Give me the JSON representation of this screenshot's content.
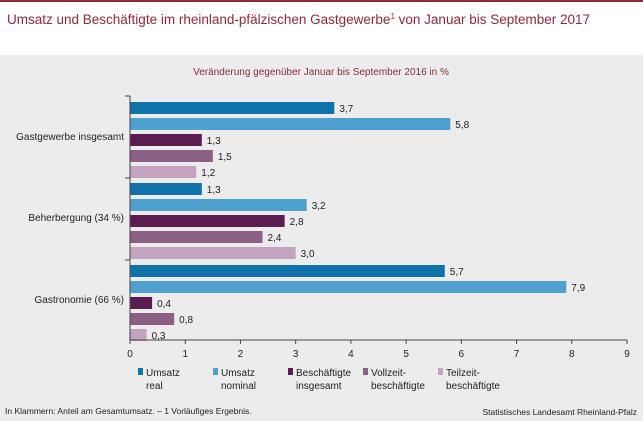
{
  "header": {
    "title": "Umsatz und Beschäftigte im rheinland-pfälzischen Gastgewerbe",
    "title_sup": "1",
    "title_suffix": " von Januar bis September 2017"
  },
  "footer": {
    "note": "In Klammern: Anteil am Gesamtumsatz. – 1 Vorläufiges Ergebnis.",
    "source": "Statistisches Landesamt Rheinland-Pfalz"
  },
  "colors": {
    "accent": "#8c2a3c",
    "panel": "#ececec"
  },
  "chart_data": {
    "type": "bar",
    "orientation": "horizontal",
    "subtitle": "Veränderung gegenüber Januar bis September 2016 in %",
    "categories": [
      "Gastgewerbe insgesamt",
      "Beherbergung (34 %)",
      "Gastronomie (66 %)"
    ],
    "series": [
      {
        "name": "Umsatz real",
        "name_lines": [
          "Umsatz",
          "real"
        ],
        "color": "#0f72a8",
        "values": [
          3.7,
          1.3,
          5.7
        ],
        "labels": [
          "3,7",
          "1,3",
          "5,7"
        ]
      },
      {
        "name": "Umsatz nominal",
        "name_lines": [
          "Umsatz",
          "nominal"
        ],
        "color": "#4ea0cf",
        "values": [
          5.8,
          3.2,
          7.9
        ],
        "labels": [
          "5,8",
          "3,2",
          "7,9"
        ]
      },
      {
        "name": "Beschäftigte insgesamt",
        "name_lines": [
          "Beschäftigte",
          "insgesamt"
        ],
        "color": "#5b1d4f",
        "values": [
          1.3,
          2.8,
          0.4
        ],
        "labels": [
          "1,3",
          "2,8",
          "0,4"
        ]
      },
      {
        "name": "Vollzeit-beschäftigte",
        "name_lines": [
          "Vollzeit-",
          "beschäftigte"
        ],
        "color": "#8b5f86",
        "values": [
          1.5,
          2.4,
          0.8
        ],
        "labels": [
          "1,5",
          "2,4",
          "0,8"
        ]
      },
      {
        "name": "Teilzeit-beschäftigte",
        "name_lines": [
          "Teilzeit-",
          "beschäftigte"
        ],
        "color": "#c4a3c1",
        "values": [
          1.2,
          3.0,
          0.3
        ],
        "labels": [
          "1,2",
          "3,0",
          "0,3"
        ]
      }
    ],
    "xlim": [
      0,
      9
    ],
    "xticks": [
      "0",
      "1",
      "2",
      "3",
      "4",
      "5",
      "6",
      "7",
      "8",
      "9"
    ],
    "grid": false,
    "legend_position": "bottom"
  }
}
